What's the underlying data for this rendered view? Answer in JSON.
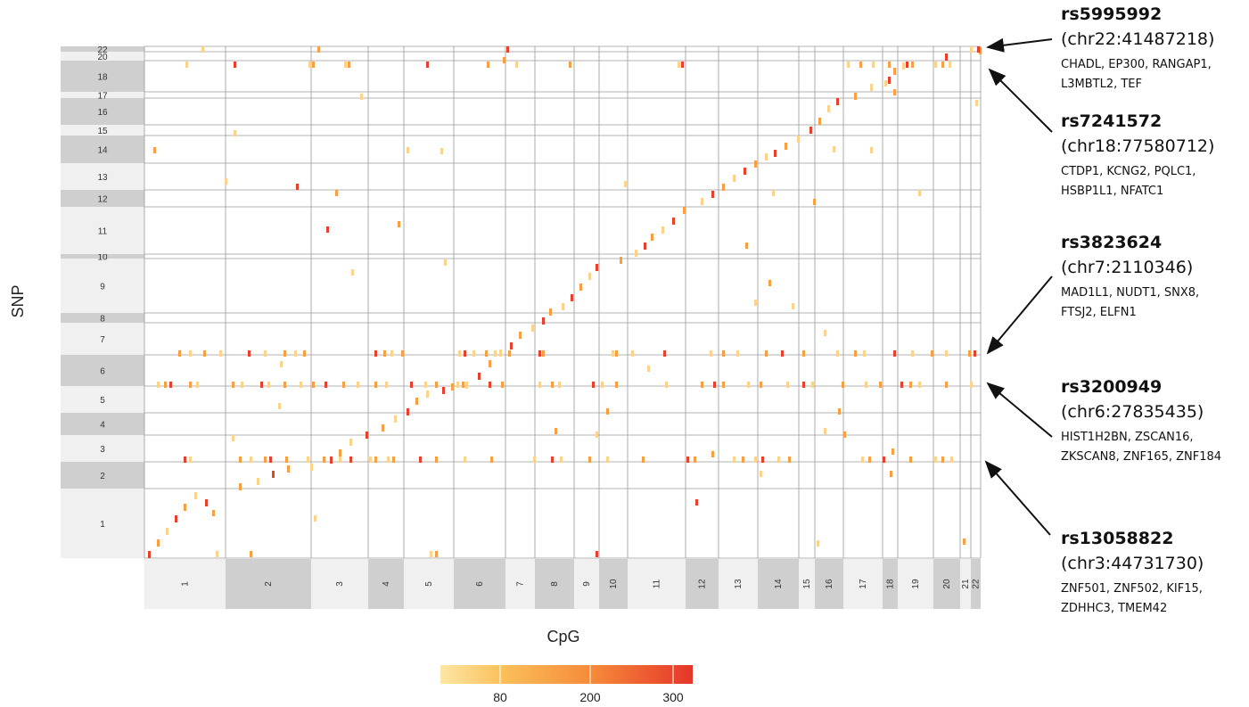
{
  "chart_data": {
    "type": "heatmap",
    "xlabel": "CpG",
    "ylabel": "SNP",
    "x_chromosomes": [
      "1",
      "2",
      "3",
      "4",
      "5",
      "6",
      "7",
      "8",
      "9",
      "10",
      "11",
      "12",
      "13",
      "14",
      "15",
      "16",
      "17",
      "18",
      "19",
      "20",
      "21",
      "22"
    ],
    "y_chromosomes": [
      "1",
      "2",
      "3",
      "4",
      "5",
      "6",
      "7",
      "8",
      "9",
      "10",
      "11",
      "12",
      "13",
      "14",
      "15",
      "16",
      "17",
      "18",
      "20",
      "22"
    ],
    "legend": {
      "ticks": [
        "80",
        "200",
        "300"
      ],
      "colors": [
        "#fdd38a",
        "#f8a040",
        "#e8402a"
      ]
    },
    "annotations": [
      {
        "rsid": "rs5995992",
        "position": "(chr22:41487218)",
        "genes": [
          "CHADL, EP300, RANGAP1,",
          "L3MBTL2, TEF"
        ]
      },
      {
        "rsid": "rs7241572",
        "position": "(chr18:77580712)",
        "genes": [
          "CTDP1,  KCNG2, PQLC1,",
          "HSBP1L1, NFATC1"
        ]
      },
      {
        "rsid": "rs3823624",
        "position": "(chr7:2110346)",
        "genes": [
          "MAD1L1, NUDT1, SNX8,",
          "FTSJ2, ELFN1"
        ]
      },
      {
        "rsid": "rs3200949",
        "position": "(chr6:27835435)",
        "genes": [
          "HIST1H2BN, ZSCAN16,",
          "ZKSCAN8, ZNF165, ZNF184"
        ]
      },
      {
        "rsid": "rs13058822",
        "position": "(chr3:44731730)",
        "genes": [
          "ZNF501, ZNF502, KIF15,",
          "ZDHHC3, TMEM42"
        ]
      }
    ]
  }
}
